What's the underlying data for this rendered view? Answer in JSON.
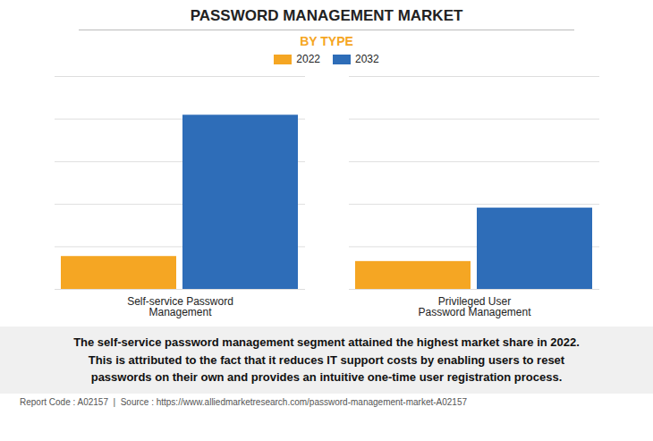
{
  "chart_data": {
    "type": "bar",
    "title": "PASSWORD MANAGEMENT MARKET",
    "subtitle": "BY TYPE",
    "categories": [
      "Self-service Password\nManagement",
      "Privileged User\nPassword Management"
    ],
    "series": [
      {
        "name": "2022",
        "color": "#F5A623",
        "values": [
          0.85,
          0.72
        ]
      },
      {
        "name": "2032",
        "color": "#2E6DB8",
        "values": [
          4.5,
          2.1
        ]
      }
    ],
    "ylim": [
      0,
      5.5
    ],
    "yticks": [
      0,
      1.1,
      2.2,
      3.3,
      4.4,
      5.5
    ],
    "grid": true,
    "tick_labels": "x",
    "legend": "top",
    "annotation": "The self-service password management segment attained the highest market share in 2022.\nThis is attributed to the fact that it reduces IT support costs by enabling users to reset\npasswords on their own and provides an intuitive one-time user registration process.",
    "footer": "Report Code : A02157  |  Source : https://www.alliedmarketresearch.com/password-management-market-A02157"
  }
}
